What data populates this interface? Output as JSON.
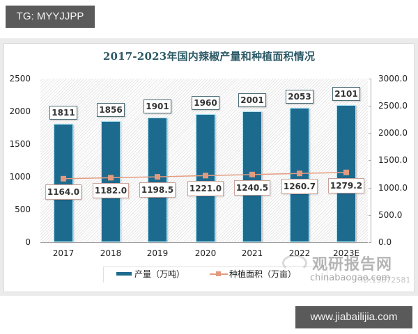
{
  "top_tag": {
    "text": "TG: MYYJJPP"
  },
  "bottom_tag": {
    "text": "www.jiabailijia.com"
  },
  "watermark": {
    "cn": "观研报告网",
    "en": "chinabaogao.com",
    "id": "ID:13672581"
  },
  "chart_data": {
    "type": "bar",
    "title": "2017-2023年国内辣椒产量和种植面积情况",
    "categories": [
      "2017",
      "2018",
      "2019",
      "2020",
      "2021",
      "2022",
      "2023E"
    ],
    "series": [
      {
        "name": "产量（万吨）",
        "type": "bar",
        "axis": "left",
        "color": "#1d6a8f",
        "values": [
          1811,
          1856,
          1901,
          1960,
          2001,
          2053,
          2101
        ],
        "labels": [
          "1811",
          "1856",
          "1901",
          "1960",
          "2001",
          "2053",
          "2101"
        ]
      },
      {
        "name": "种植面积（万亩）",
        "type": "line",
        "axis": "right",
        "color": "#e39b7f",
        "values": [
          1164.0,
          1182.0,
          1198.5,
          1221.0,
          1240.5,
          1260.7,
          1279.2
        ],
        "labels": [
          "1164.0",
          "1182.0",
          "1198.5",
          "1221.0",
          "1240.5",
          "1260.7",
          "1279.2"
        ]
      }
    ],
    "left_axis": {
      "ylim": [
        0,
        2500
      ],
      "ticks": [
        "0",
        "500",
        "1000",
        "1500",
        "2000",
        "2500"
      ]
    },
    "right_axis": {
      "ylim": [
        0,
        3000
      ],
      "ticks": [
        "0.0",
        "500.0",
        "1000.0",
        "1500.0",
        "2000.0",
        "2500.0",
        "3000.0"
      ]
    },
    "xlabel": "",
    "ylabel": "",
    "grid": false,
    "legend_position": "bottom"
  },
  "legend": {
    "items": [
      {
        "label": "产量（万吨）"
      },
      {
        "label": "种植面积（万亩）"
      }
    ]
  }
}
